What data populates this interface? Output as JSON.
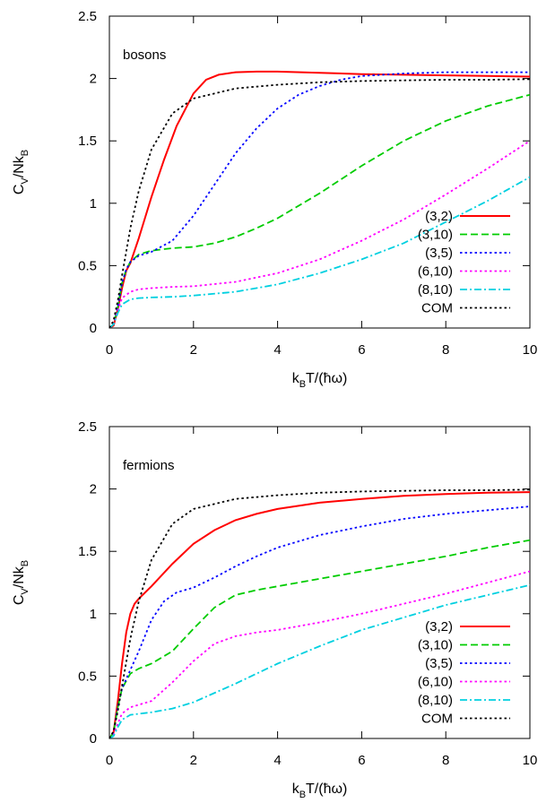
{
  "chart_data": [
    {
      "type": "line",
      "title": "",
      "annotation": "bosons",
      "xlabel": {
        "main": "k",
        "sub": "B",
        "rest": "T/(ħω)"
      },
      "ylabel": {
        "main": "C",
        "sub1": "V",
        "mid": "/Nk",
        "sub2": "B"
      },
      "xlim": [
        0,
        10
      ],
      "ylim": [
        0,
        2.5
      ],
      "xticks": [
        "0",
        "2",
        "4",
        "6",
        "8",
        "10"
      ],
      "yticks": [
        "0",
        "0.5",
        "1",
        "1.5",
        "2",
        "2.5"
      ],
      "grid": false,
      "legend_position": "bottom-right",
      "series": [
        {
          "name": "(3,2)",
          "color": "#ff0000",
          "dash": "solid",
          "x": [
            0,
            0.1,
            0.2,
            0.3,
            0.4,
            0.5,
            0.7,
            1.0,
            1.3,
            1.6,
            2.0,
            2.3,
            2.6,
            3.0,
            3.5,
            4.0,
            5.0,
            6.0,
            7.0,
            8.0,
            9.0,
            10.0
          ],
          "y": [
            0,
            0.02,
            0.15,
            0.32,
            0.46,
            0.52,
            0.72,
            1.05,
            1.35,
            1.62,
            1.88,
            1.99,
            2.03,
            2.05,
            2.055,
            2.055,
            2.045,
            2.035,
            2.03,
            2.025,
            2.02,
            2.015
          ]
        },
        {
          "name": "(3,10)",
          "color": "#00cc00",
          "dash": "dashed",
          "x": [
            0,
            0.1,
            0.2,
            0.3,
            0.4,
            0.5,
            0.7,
            1.0,
            1.5,
            2.0,
            2.5,
            3.0,
            3.5,
            4.0,
            5.0,
            6.0,
            7.0,
            8.0,
            9.0,
            10.0
          ],
          "y": [
            0,
            0.03,
            0.17,
            0.36,
            0.47,
            0.53,
            0.59,
            0.62,
            0.64,
            0.65,
            0.68,
            0.73,
            0.8,
            0.88,
            1.08,
            1.3,
            1.5,
            1.66,
            1.78,
            1.87
          ]
        },
        {
          "name": "(3,5)",
          "color": "#0000ff",
          "dash": "dotted",
          "x": [
            0,
            0.1,
            0.2,
            0.3,
            0.4,
            0.5,
            0.7,
            1.0,
            1.5,
            2.0,
            2.5,
            3.0,
            3.5,
            4.0,
            4.5,
            5.0,
            5.5,
            6.0,
            7.0,
            8.0,
            9.0,
            10.0
          ],
          "y": [
            0,
            0.03,
            0.17,
            0.36,
            0.47,
            0.53,
            0.58,
            0.61,
            0.7,
            0.9,
            1.15,
            1.4,
            1.6,
            1.76,
            1.87,
            1.94,
            1.99,
            2.02,
            2.04,
            2.05,
            2.05,
            2.05
          ]
        },
        {
          "name": "(6,10)",
          "color": "#ff00ff",
          "dash": "dotted",
          "x": [
            0,
            0.1,
            0.2,
            0.3,
            0.5,
            0.7,
            1.0,
            1.5,
            2.0,
            3.0,
            4.0,
            5.0,
            6.0,
            7.0,
            8.0,
            9.0,
            10.0
          ],
          "y": [
            0,
            0.03,
            0.14,
            0.24,
            0.29,
            0.31,
            0.32,
            0.33,
            0.335,
            0.37,
            0.44,
            0.55,
            0.7,
            0.87,
            1.07,
            1.28,
            1.5
          ]
        },
        {
          "name": "(8,10)",
          "color": "#00d0e0",
          "dash": "dashdot",
          "x": [
            0,
            0.1,
            0.2,
            0.3,
            0.5,
            0.7,
            1.0,
            1.5,
            2.0,
            3.0,
            4.0,
            5.0,
            6.0,
            7.0,
            8.0,
            9.0,
            10.0
          ],
          "y": [
            0,
            0.03,
            0.12,
            0.19,
            0.23,
            0.24,
            0.245,
            0.25,
            0.26,
            0.29,
            0.35,
            0.44,
            0.55,
            0.68,
            0.85,
            1.02,
            1.21
          ]
        },
        {
          "name": "COM",
          "color": "#000000",
          "dash": "dotted",
          "x": [
            0,
            0.1,
            0.2,
            0.3,
            0.5,
            0.7,
            1.0,
            1.5,
            2.0,
            3.0,
            4.0,
            5.0,
            6.0,
            7.0,
            8.0,
            9.0,
            10.0
          ],
          "y": [
            0,
            0.06,
            0.22,
            0.42,
            0.8,
            1.1,
            1.43,
            1.72,
            1.84,
            1.92,
            1.95,
            1.97,
            1.98,
            1.985,
            1.99,
            1.99,
            1.995
          ]
        }
      ]
    },
    {
      "type": "line",
      "title": "",
      "annotation": "fermions",
      "xlabel": {
        "main": "k",
        "sub": "B",
        "rest": "T/(ħω)"
      },
      "ylabel": {
        "main": "C",
        "sub1": "V",
        "mid": "/Nk",
        "sub2": "B"
      },
      "xlim": [
        0,
        10
      ],
      "ylim": [
        0,
        2.5
      ],
      "xticks": [
        "0",
        "2",
        "4",
        "6",
        "8",
        "10"
      ],
      "yticks": [
        "0",
        "0.5",
        "1",
        "1.5",
        "2",
        "2.5"
      ],
      "grid": false,
      "legend_position": "bottom-right",
      "series": [
        {
          "name": "(3,2)",
          "color": "#ff0000",
          "dash": "solid",
          "x": [
            0,
            0.1,
            0.2,
            0.3,
            0.4,
            0.5,
            0.6,
            0.7,
            1.0,
            1.5,
            2.0,
            2.5,
            3.0,
            3.5,
            4.0,
            5.0,
            6.0,
            7.0,
            8.0,
            9.0,
            10.0
          ],
          "y": [
            0,
            0.05,
            0.3,
            0.6,
            0.85,
            1.0,
            1.08,
            1.12,
            1.22,
            1.4,
            1.56,
            1.67,
            1.75,
            1.8,
            1.84,
            1.89,
            1.92,
            1.945,
            1.96,
            1.97,
            1.975
          ]
        },
        {
          "name": "(3,10)",
          "color": "#00cc00",
          "dash": "dashed",
          "x": [
            0,
            0.1,
            0.2,
            0.3,
            0.5,
            0.7,
            1.0,
            1.5,
            2.0,
            2.5,
            3.0,
            3.5,
            4.0,
            5.0,
            6.0,
            7.0,
            8.0,
            9.0,
            10.0
          ],
          "y": [
            0,
            0.05,
            0.25,
            0.4,
            0.52,
            0.56,
            0.6,
            0.7,
            0.88,
            1.05,
            1.15,
            1.19,
            1.22,
            1.28,
            1.34,
            1.4,
            1.46,
            1.53,
            1.59
          ]
        },
        {
          "name": "(3,5)",
          "color": "#0000ff",
          "dash": "dotted",
          "x": [
            0,
            0.1,
            0.2,
            0.3,
            0.5,
            0.7,
            1.0,
            1.3,
            1.6,
            2.0,
            2.5,
            3.0,
            3.5,
            4.0,
            5.0,
            6.0,
            7.0,
            8.0,
            9.0,
            10.0
          ],
          "y": [
            0,
            0.05,
            0.25,
            0.4,
            0.55,
            0.7,
            0.95,
            1.1,
            1.17,
            1.21,
            1.29,
            1.38,
            1.46,
            1.53,
            1.63,
            1.7,
            1.76,
            1.8,
            1.83,
            1.86
          ]
        },
        {
          "name": "(6,10)",
          "color": "#ff00ff",
          "dash": "dotted",
          "x": [
            0,
            0.1,
            0.2,
            0.3,
            0.5,
            0.8,
            1.0,
            1.5,
            2.0,
            2.5,
            3.0,
            3.5,
            4.0,
            5.0,
            6.0,
            7.0,
            8.0,
            9.0,
            10.0
          ],
          "y": [
            0,
            0.03,
            0.12,
            0.2,
            0.25,
            0.28,
            0.3,
            0.45,
            0.62,
            0.76,
            0.82,
            0.85,
            0.87,
            0.93,
            1.0,
            1.08,
            1.16,
            1.25,
            1.34
          ]
        },
        {
          "name": "(8,10)",
          "color": "#00d0e0",
          "dash": "dashdot",
          "x": [
            0,
            0.1,
            0.2,
            0.3,
            0.5,
            1.0,
            1.5,
            2.0,
            3.0,
            4.0,
            5.0,
            6.0,
            7.0,
            8.0,
            9.0,
            10.0
          ],
          "y": [
            0,
            0.02,
            0.09,
            0.15,
            0.19,
            0.21,
            0.24,
            0.29,
            0.44,
            0.6,
            0.74,
            0.87,
            0.97,
            1.07,
            1.15,
            1.23
          ]
        },
        {
          "name": "COM",
          "color": "#000000",
          "dash": "dotted",
          "x": [
            0,
            0.1,
            0.2,
            0.3,
            0.5,
            0.7,
            1.0,
            1.5,
            2.0,
            3.0,
            4.0,
            5.0,
            6.0,
            7.0,
            8.0,
            9.0,
            10.0
          ],
          "y": [
            0,
            0.06,
            0.22,
            0.42,
            0.8,
            1.1,
            1.43,
            1.72,
            1.84,
            1.92,
            1.95,
            1.97,
            1.98,
            1.985,
            1.99,
            1.99,
            1.995
          ]
        }
      ]
    }
  ]
}
